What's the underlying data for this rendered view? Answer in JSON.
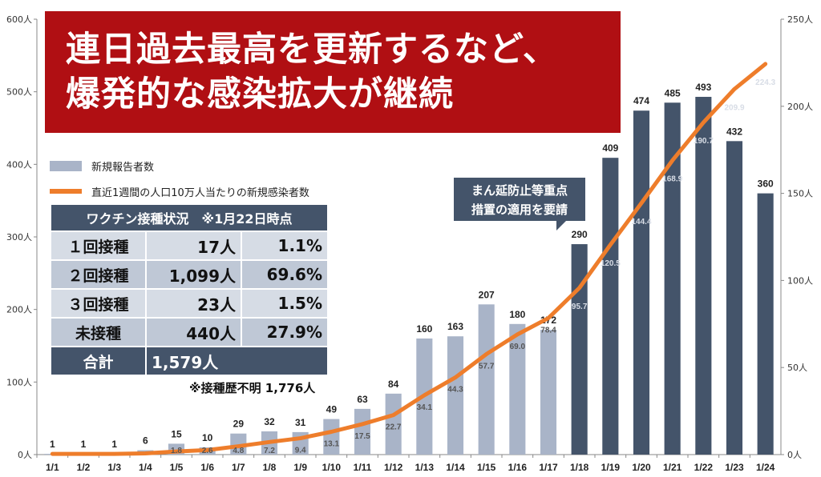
{
  "title": {
    "line1": "連日過去最高を更新するなど、",
    "line2": "爆発的な感染拡大が継続"
  },
  "legend": {
    "bar_label": "新規報告者数",
    "line_label": "直近1週間の人口10万人当たりの新規感染者数"
  },
  "vaccination": {
    "header": "ワクチン接種状況　※1月22日時点",
    "rows": [
      {
        "label": "１回接種",
        "count": "17人",
        "pct": "1.1%"
      },
      {
        "label": "２回接種",
        "count": "1,099人",
        "pct": "69.6%"
      },
      {
        "label": "３回接種",
        "count": "23人",
        "pct": "1.5%"
      },
      {
        "label": "未接種",
        "count": "440人",
        "pct": "27.9%"
      }
    ],
    "total": {
      "label": "合計",
      "count": "1,579人"
    },
    "note": "※接種歴不明 1,776人"
  },
  "callout": {
    "line1": "まん延防止等重点",
    "line2": "措置の適用を要請"
  },
  "colors": {
    "title_bg": "#b00f13",
    "bar_light": "#a9b4c8",
    "bar_dark": "#44546a",
    "line": "#ee7d2b"
  },
  "chart_data": {
    "type": "bar",
    "categories": [
      "1/1",
      "1/2",
      "1/3",
      "1/4",
      "1/5",
      "1/6",
      "1/7",
      "1/8",
      "1/9",
      "1/10",
      "1/11",
      "1/12",
      "1/13",
      "1/14",
      "1/15",
      "1/16",
      "1/17",
      "1/18",
      "1/19",
      "1/20",
      "1/21",
      "1/22",
      "1/23",
      "1/24"
    ],
    "series": [
      {
        "name": "新規報告者数",
        "type": "bar",
        "axis": "left",
        "values": [
          1,
          1,
          1,
          6,
          15,
          10,
          29,
          32,
          31,
          49,
          63,
          84,
          160,
          163,
          207,
          180,
          172,
          290,
          409,
          474,
          485,
          493,
          432,
          360
        ],
        "value_labels": [
          "1",
          "1",
          "1",
          "6",
          "15",
          "10",
          "29",
          "32",
          "31",
          "49",
          "63",
          "84",
          "160",
          "163",
          "207",
          "180",
          "172",
          "290",
          "409",
          "474",
          "485",
          "493",
          "432",
          "360"
        ],
        "highlight_from_category": "1/18"
      },
      {
        "name": "直近1週間の人口10万人当たりの新規感染者数",
        "type": "line",
        "axis": "right",
        "values": [
          0.4,
          0.4,
          0.4,
          0.7,
          1.8,
          2.6,
          4.8,
          7.2,
          9.4,
          13.1,
          17.5,
          22.7,
          34.1,
          44.3,
          57.7,
          69.0,
          78.4,
          95.7,
          120.5,
          144.4,
          168.9,
          190.7,
          209.9,
          224.3
        ],
        "value_labels": [
          "",
          "",
          "",
          "",
          "1.8",
          "2.6",
          "4.8",
          "7.2",
          "9.4",
          "13.1",
          "17.5",
          "22.7",
          "34.1",
          "44.3",
          "57.7",
          "69.0",
          "78.4",
          "95.7",
          "120.5",
          "144.4",
          "168.9",
          "190.7",
          "209.9",
          "224.3"
        ]
      }
    ],
    "left_axis": {
      "ylim": [
        0,
        600
      ],
      "ticks": [
        0,
        100,
        200,
        300,
        400,
        500,
        600
      ],
      "tick_labels": [
        "0人",
        "100人",
        "200人",
        "300人",
        "400人",
        "500人",
        "600人"
      ]
    },
    "right_axis": {
      "ylim": [
        0,
        250
      ],
      "ticks": [
        0,
        50,
        100,
        150,
        200,
        250
      ],
      "tick_labels": [
        "0人",
        "50人",
        "100人",
        "150人",
        "200人",
        "250人"
      ]
    }
  }
}
